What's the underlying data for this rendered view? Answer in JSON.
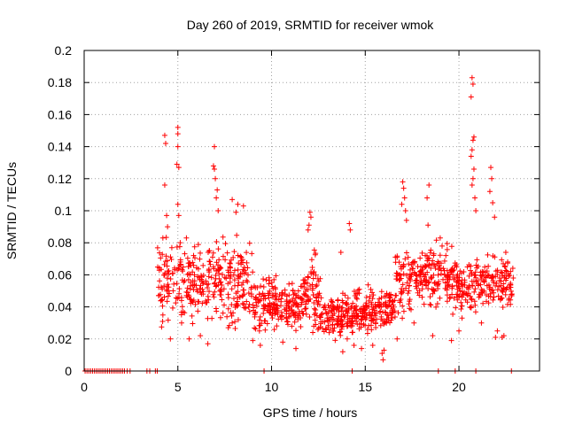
{
  "chart_data": {
    "type": "scatter",
    "title": "Day 260 of 2019, SRMTID for receiver wmok",
    "xlabel": "GPS time / hours",
    "ylabel": "SRMTID / TECUs",
    "xlim": [
      0,
      24.3
    ],
    "ylim": [
      0,
      0.2
    ],
    "x_ticks": [
      0,
      5,
      10,
      15,
      20
    ],
    "y_ticks": [
      0,
      0.02,
      0.04,
      0.06,
      0.08,
      0.1,
      0.12,
      0.14,
      0.16,
      0.18,
      0.2
    ],
    "x_tick_labels": [
      "0",
      "5",
      "10",
      "15",
      "20"
    ],
    "y_tick_labels": [
      "0",
      "0.02",
      "0.04",
      "0.06",
      "0.08",
      "0.1",
      "0.12",
      "0.14",
      "0.16",
      "0.18",
      "0.2"
    ],
    "grid": true,
    "marker": "+",
    "series_color": "#ff0000",
    "zero_points_x": [
      0.05,
      0.15,
      0.25,
      0.35,
      0.45,
      0.55,
      0.65,
      0.75,
      0.85,
      0.95,
      1.05,
      1.15,
      1.25,
      1.35,
      1.45,
      1.55,
      1.65,
      1.75,
      1.85,
      1.95,
      2.05,
      2.15,
      2.3,
      2.45,
      3.35,
      3.5,
      3.8,
      3.9,
      9.6,
      14.3,
      18.9,
      19.8,
      20.9,
      22.8
    ],
    "peak_points": [
      [
        4.3,
        0.147
      ],
      [
        4.35,
        0.142
      ],
      [
        4.3,
        0.116
      ],
      [
        4.4,
        0.097
      ],
      [
        4.45,
        0.09
      ],
      [
        4.2,
        0.083
      ],
      [
        5.0,
        0.152
      ],
      [
        5.0,
        0.148
      ],
      [
        5.0,
        0.14
      ],
      [
        4.95,
        0.129
      ],
      [
        5.05,
        0.127
      ],
      [
        5.0,
        0.104
      ],
      [
        5.05,
        0.097
      ],
      [
        6.95,
        0.14
      ],
      [
        6.9,
        0.128
      ],
      [
        6.95,
        0.126
      ],
      [
        7.0,
        0.12
      ],
      [
        7.1,
        0.113
      ],
      [
        7.05,
        0.108
      ],
      [
        7.15,
        0.1
      ],
      [
        7.9,
        0.107
      ],
      [
        8.2,
        0.104
      ],
      [
        8.1,
        0.099
      ],
      [
        8.5,
        0.103
      ],
      [
        12.05,
        0.099
      ],
      [
        12.1,
        0.096
      ],
      [
        12.0,
        0.091
      ],
      [
        11.95,
        0.088
      ],
      [
        13.7,
        0.074
      ],
      [
        14.15,
        0.092
      ],
      [
        14.2,
        0.088
      ],
      [
        15.9,
        0.011
      ],
      [
        15.95,
        0.007
      ],
      [
        16.0,
        0.013
      ],
      [
        17.0,
        0.118
      ],
      [
        17.05,
        0.114
      ],
      [
        17.1,
        0.108
      ],
      [
        16.95,
        0.104
      ],
      [
        17.15,
        0.1
      ],
      [
        17.2,
        0.094
      ],
      [
        18.3,
        0.108
      ],
      [
        18.4,
        0.116
      ],
      [
        18.35,
        0.091
      ],
      [
        19.1,
        0.078
      ],
      [
        19.0,
        0.083
      ],
      [
        19.3,
        0.072
      ],
      [
        20.7,
        0.183
      ],
      [
        20.75,
        0.179
      ],
      [
        20.65,
        0.171
      ],
      [
        20.8,
        0.146
      ],
      [
        20.75,
        0.144
      ],
      [
        20.7,
        0.138
      ],
      [
        20.65,
        0.134
      ],
      [
        20.8,
        0.126
      ],
      [
        20.75,
        0.12
      ],
      [
        20.7,
        0.116
      ],
      [
        20.85,
        0.108
      ],
      [
        20.9,
        0.1
      ],
      [
        21.7,
        0.127
      ],
      [
        21.75,
        0.12
      ],
      [
        21.65,
        0.112
      ],
      [
        21.8,
        0.105
      ],
      [
        21.9,
        0.096
      ],
      [
        22.5,
        0.074
      ],
      [
        22.6,
        0.068
      ],
      [
        22.4,
        0.022
      ],
      [
        22.3,
        0.021
      ],
      [
        21.95,
        0.021
      ],
      [
        22.05,
        0.025
      ],
      [
        4.6,
        0.02
      ],
      [
        5.2,
        0.03
      ],
      [
        5.6,
        0.02
      ],
      [
        6.2,
        0.022
      ],
      [
        6.6,
        0.017
      ],
      [
        7.9,
        0.03
      ],
      [
        9.0,
        0.019
      ],
      [
        9.4,
        0.016
      ],
      [
        10.6,
        0.018
      ],
      [
        11.3,
        0.014
      ],
      [
        12.2,
        0.024
      ],
      [
        13.8,
        0.012
      ],
      [
        14.4,
        0.016
      ],
      [
        14.8,
        0.014
      ],
      [
        15.4,
        0.016
      ],
      [
        16.7,
        0.02
      ],
      [
        17.6,
        0.03
      ],
      [
        18.6,
        0.022
      ],
      [
        19.6,
        0.019
      ],
      [
        20.0,
        0.025
      ],
      [
        21.2,
        0.03
      ]
    ],
    "dense_segments": [
      {
        "x_start": 3.9,
        "x_end": 9.0,
        "center": 0.056,
        "spread": 0.02,
        "count": 340
      },
      {
        "x_start": 9.0,
        "x_end": 11.7,
        "center": 0.041,
        "spread": 0.013,
        "count": 200
      },
      {
        "x_start": 11.7,
        "x_end": 12.6,
        "center": 0.05,
        "spread": 0.018,
        "count": 70
      },
      {
        "x_start": 12.6,
        "x_end": 14.4,
        "center": 0.034,
        "spread": 0.011,
        "count": 140
      },
      {
        "x_start": 14.4,
        "x_end": 16.6,
        "center": 0.038,
        "spread": 0.011,
        "count": 170
      },
      {
        "x_start": 16.6,
        "x_end": 19.9,
        "center": 0.058,
        "spread": 0.017,
        "count": 230
      },
      {
        "x_start": 19.9,
        "x_end": 22.9,
        "center": 0.054,
        "spread": 0.014,
        "count": 200
      }
    ]
  }
}
